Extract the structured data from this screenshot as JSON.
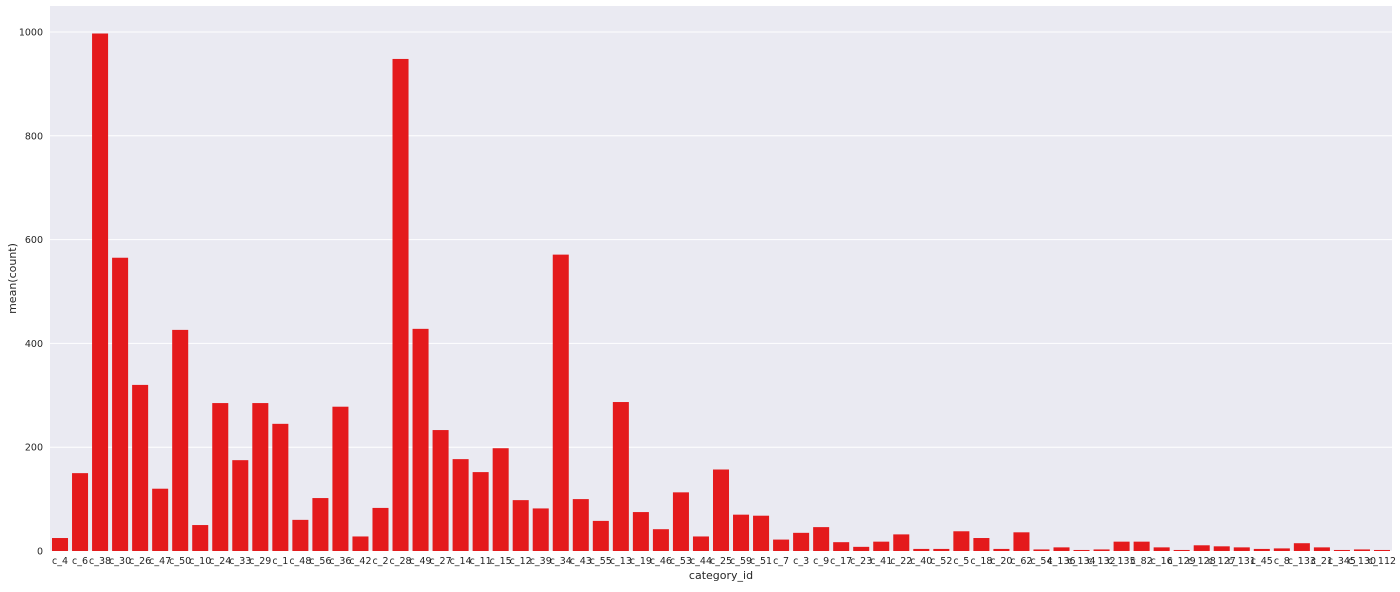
{
  "chart_data": {
    "type": "bar",
    "xlabel": "category_id",
    "ylabel": "mean(count)",
    "ylim": [
      0,
      1050
    ],
    "yticks": [
      0,
      200,
      400,
      600,
      800,
      1000
    ],
    "grid": true,
    "bar_color": "#e41a1c",
    "background_color": "#eaeaf2",
    "grid_color": "#ffffff",
    "categories": [
      "c_4",
      "c_6",
      "c_38",
      "c_30",
      "c_26",
      "c_47",
      "c_50",
      "c_10",
      "c_24",
      "c_33",
      "c_29",
      "c_1",
      "c_48",
      "c_56",
      "c_36",
      "c_42",
      "c_2",
      "c_28",
      "c_49",
      "c_27",
      "c_14",
      "c_11",
      "c_15",
      "c_12",
      "c_39",
      "c_34",
      "c_43",
      "c_55",
      "c_13",
      "c_19",
      "c_46",
      "c_53",
      "c_44",
      "c_25",
      "c_59",
      "c_51",
      "c_7",
      "c_3",
      "c_9",
      "c_17",
      "c_23",
      "c_41",
      "c_22",
      "c_40",
      "c_52",
      "c_5",
      "c_18",
      "c_20",
      "c_62",
      "c_54",
      "c_136",
      "c_134",
      "c_132",
      "c_135",
      "c_82",
      "c_16",
      "c_129",
      "c_128",
      "c_127",
      "c_131",
      "c_45",
      "c_8",
      "c_133",
      "c_21",
      "c_345",
      "c_130",
      "c_112"
    ],
    "values": [
      25,
      150,
      997,
      565,
      320,
      120,
      426,
      50,
      285,
      175,
      285,
      245,
      60,
      102,
      278,
      28,
      83,
      948,
      428,
      233,
      177,
      152,
      198,
      98,
      82,
      571,
      100,
      58,
      287,
      75,
      42,
      113,
      28,
      157,
      70,
      68,
      22,
      35,
      46,
      17,
      8,
      18,
      32,
      4,
      4,
      38,
      25,
      4,
      36,
      3,
      7,
      2,
      3,
      18,
      18,
      7,
      2,
      11,
      9,
      7,
      4,
      5,
      15,
      7,
      2,
      3,
      2
    ]
  }
}
